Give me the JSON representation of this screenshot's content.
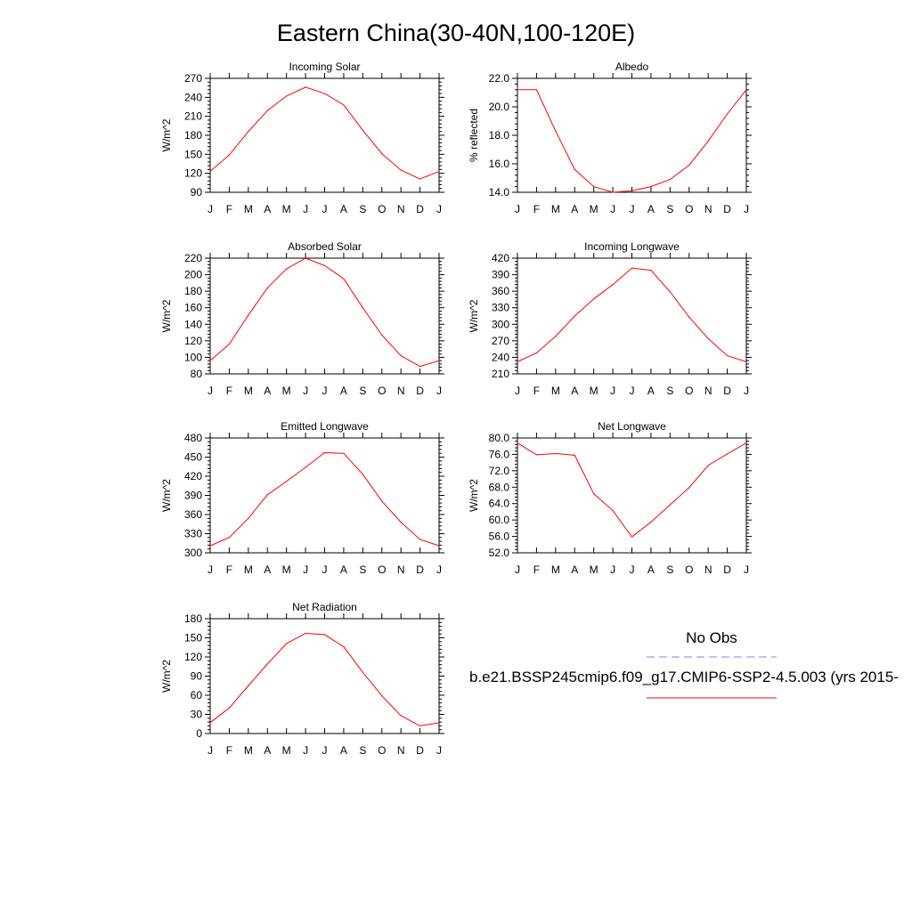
{
  "page": {
    "title": "Eastern China(30-40N,100-120E)"
  },
  "legend": {
    "obs_label": "No Obs",
    "obs_color": "#7f7fff",
    "model_label": "b.e21.BSSP245cmip6.f09_g17.CMIP6-SSP2-4.5.003 (yrs 2015-",
    "model_color": "#ff0000"
  },
  "chart_data": [
    {
      "type": "line",
      "title": "Incoming Solar",
      "ylabel": "W/m^2",
      "xlabel": "",
      "categories": [
        "J",
        "F",
        "M",
        "A",
        "M",
        "J",
        "J",
        "A",
        "S",
        "O",
        "N",
        "D",
        "J"
      ],
      "ylim": [
        90,
        270
      ],
      "yticks": [
        "90",
        "120",
        "150",
        "180",
        "210",
        "240",
        "270"
      ],
      "grid": false,
      "series": [
        {
          "values": [
            123,
            149,
            186,
            219,
            242,
            256,
            246,
            228,
            188,
            151,
            125,
            111,
            123
          ],
          "color": "#ff0000"
        }
      ]
    },
    {
      "type": "line",
      "title": "Albedo",
      "ylabel": "% reflected",
      "xlabel": "",
      "categories": [
        "J",
        "F",
        "M",
        "A",
        "M",
        "J",
        "J",
        "A",
        "S",
        "O",
        "N",
        "D",
        "J"
      ],
      "ylim": [
        14,
        22
      ],
      "yticks": [
        "14.0",
        "16.0",
        "18.0",
        "20.0",
        "22.0"
      ],
      "grid": false,
      "series": [
        {
          "values": [
            21.2,
            21.2,
            18.3,
            15.6,
            14.4,
            14.0,
            14.1,
            14.4,
            14.9,
            15.9,
            17.6,
            19.5,
            21.2
          ],
          "color": "#ff0000"
        }
      ]
    },
    {
      "type": "line",
      "title": "Absorbed Solar",
      "ylabel": "W/m^2",
      "xlabel": "",
      "categories": [
        "J",
        "F",
        "M",
        "A",
        "M",
        "J",
        "J",
        "A",
        "S",
        "O",
        "N",
        "D",
        "J"
      ],
      "ylim": [
        80,
        220
      ],
      "yticks": [
        "80",
        "100",
        "120",
        "140",
        "160",
        "180",
        "200",
        "220"
      ],
      "grid": false,
      "series": [
        {
          "values": [
            96,
            116,
            151,
            184,
            207,
            220,
            211,
            195,
            160,
            127,
            102,
            89,
            96
          ],
          "color": "#ff0000"
        }
      ]
    },
    {
      "type": "line",
      "title": "Incoming Longwave",
      "ylabel": "W/m^2",
      "xlabel": "",
      "categories": [
        "J",
        "F",
        "M",
        "A",
        "M",
        "J",
        "J",
        "A",
        "S",
        "O",
        "N",
        "D",
        "J"
      ],
      "ylim": [
        210,
        420
      ],
      "yticks": [
        "210",
        "240",
        "270",
        "300",
        "330",
        "360",
        "390",
        "420"
      ],
      "grid": false,
      "series": [
        {
          "values": [
            232,
            248,
            278,
            315,
            346,
            372,
            402,
            398,
            359,
            313,
            274,
            243,
            232
          ],
          "color": "#ff0000"
        }
      ]
    },
    {
      "type": "line",
      "title": "Emitted Longwave",
      "ylabel": "W/m^2",
      "xlabel": "",
      "categories": [
        "J",
        "F",
        "M",
        "A",
        "M",
        "J",
        "J",
        "A",
        "S",
        "O",
        "N",
        "D",
        "J"
      ],
      "ylim": [
        300,
        480
      ],
      "yticks": [
        "300",
        "330",
        "360",
        "390",
        "420",
        "450",
        "480"
      ],
      "grid": false,
      "series": [
        {
          "values": [
            311,
            324,
            354,
            391,
            412,
            434,
            457,
            456,
            423,
            381,
            348,
            321,
            311
          ],
          "color": "#ff0000"
        }
      ]
    },
    {
      "type": "line",
      "title": "Net Longwave",
      "ylabel": "W/m^2",
      "xlabel": "",
      "categories": [
        "J",
        "F",
        "M",
        "A",
        "M",
        "J",
        "J",
        "A",
        "S",
        "O",
        "N",
        "D",
        "J"
      ],
      "ylim": [
        52,
        80
      ],
      "yticks": [
        "52.0",
        "56.0",
        "60.0",
        "64.0",
        "68.0",
        "72.0",
        "76.0",
        "80.0"
      ],
      "grid": false,
      "series": [
        {
          "values": [
            78.8,
            75.9,
            76.2,
            75.8,
            66.4,
            62.3,
            55.9,
            59.5,
            63.7,
            67.9,
            73.3,
            76.1,
            78.8
          ],
          "color": "#ff0000"
        }
      ]
    },
    {
      "type": "line",
      "title": "Net Radiation",
      "ylabel": "W/m^2",
      "xlabel": "",
      "categories": [
        "J",
        "F",
        "M",
        "A",
        "M",
        "J",
        "J",
        "A",
        "S",
        "O",
        "N",
        "D",
        "J"
      ],
      "ylim": [
        0,
        180
      ],
      "yticks": [
        "0",
        "30",
        "60",
        "90",
        "120",
        "150",
        "180"
      ],
      "grid": false,
      "series": [
        {
          "values": [
            17,
            40,
            75,
            109,
            141,
            157,
            155,
            136,
            96,
            59,
            28,
            12,
            17
          ],
          "color": "#ff0000"
        }
      ]
    }
  ]
}
